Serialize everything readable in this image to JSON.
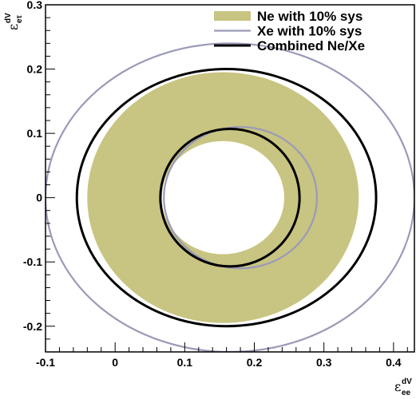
{
  "chart_data": {
    "type": "scatter",
    "title": "",
    "xlabel": {
      "symbol": "ε",
      "sup": "dV",
      "sub": "ee"
    },
    "ylabel": {
      "symbol": "ε",
      "sup": "dV",
      "sub": "eτ"
    },
    "xlim": [
      -0.1,
      0.43
    ],
    "ylim": [
      -0.24,
      0.3
    ],
    "xticks": [
      -0.1,
      0,
      0.1,
      0.2,
      0.3,
      0.4
    ],
    "xtick_labels": [
      "-0.1",
      "0",
      "0.1",
      "0.2",
      "0.3",
      "0.4"
    ],
    "yticks": [
      -0.2,
      -0.1,
      0,
      0.1,
      0.2,
      0.3
    ],
    "ytick_labels": [
      "-0.2",
      "-0.1",
      "0",
      "0.1",
      "0.2",
      "0.3"
    ],
    "legend_position": "top-right",
    "series": [
      {
        "name": "Ne with 10% sys",
        "style": "filled-band",
        "color": "#c8c482",
        "outer": {
          "cx": 0.155,
          "cy": 0.0,
          "rx": 0.195,
          "ry": 0.195
        },
        "inner": {
          "cx": 0.155,
          "cy": 0.0,
          "rx": 0.088,
          "ry": 0.088
        }
      },
      {
        "name": "Xe with 10% sys",
        "style": "outline",
        "color": "#9a9ab8",
        "outer": {
          "cx": 0.165,
          "cy": 0.0,
          "rx": 0.265,
          "ry": 0.24
        },
        "inner": {
          "cx": 0.18,
          "cy": 0.0,
          "rx": 0.11,
          "ry": 0.11
        }
      },
      {
        "name": "Combined Ne/Xe",
        "style": "outline",
        "color": "#000000",
        "outer": {
          "cx": 0.16,
          "cy": 0.0,
          "rx": 0.215,
          "ry": 0.2
        },
        "inner": {
          "cx": 0.165,
          "cy": 0.0,
          "rx": 0.1,
          "ry": 0.107
        }
      }
    ]
  }
}
